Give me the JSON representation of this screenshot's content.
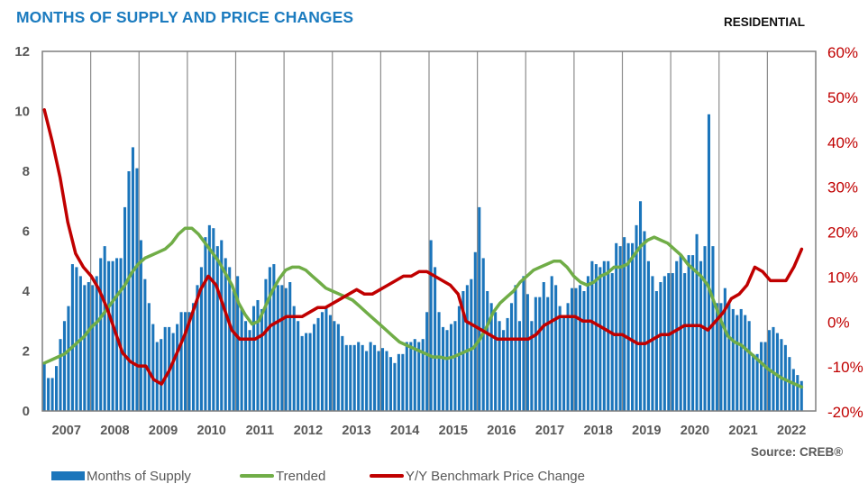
{
  "title": "MONTHS OF SUPPLY AND PRICE CHANGES",
  "segment_label": "RESIDENTIAL",
  "source": "Source: CREB®",
  "colors": {
    "title": "#1b7bbf",
    "bars": "#1b75bb",
    "trended": "#70ad47",
    "price_change": "#c00000",
    "gridlines": "#8c8c8c",
    "axis_text_left": "#595959",
    "axis_text_right": "#c00000"
  },
  "legend": [
    {
      "label": "Months of Supply",
      "type": "bar",
      "color": "#1b75bb"
    },
    {
      "label": "Trended",
      "type": "line",
      "color": "#70ad47"
    },
    {
      "label": "Y/Y Benchmark Price Change",
      "type": "line",
      "color": "#c00000"
    }
  ],
  "chart_data": {
    "type": "bar+line",
    "title": "MONTHS OF SUPPLY AND PRICE CHANGES",
    "subtitle": "RESIDENTIAL",
    "xlabel": "",
    "ylabel_left": "Months of Supply",
    "ylabel_right": "Y/Y Benchmark Price Change",
    "ylim_left": [
      0,
      12
    ],
    "ylim_right": [
      -20,
      60
    ],
    "yticks_left": [
      "0",
      "2",
      "4",
      "6",
      "8",
      "10",
      "12"
    ],
    "yticks_right": [
      "-20%",
      "-10%",
      "0%",
      "10%",
      "20%",
      "30%",
      "40%",
      "50%",
      "60%"
    ],
    "x_categories": [
      "2007",
      "2008",
      "2009",
      "2010",
      "2011",
      "2012",
      "2013",
      "2014",
      "2015",
      "2016",
      "2017",
      "2018",
      "2019",
      "2020",
      "2021",
      "2022"
    ],
    "x_frequency": "monthly",
    "x_start": "2007-01",
    "x_end": "2022-02",
    "grid": "vertical lines at year boundaries",
    "legend_position": "bottom",
    "series": [
      {
        "name": "Months of Supply",
        "type": "bar",
        "axis": "left",
        "values": [
          1.6,
          1.1,
          1.1,
          1.5,
          2.4,
          3.0,
          3.5,
          4.9,
          4.8,
          4.5,
          4.2,
          4.3,
          4.2,
          4.5,
          5.1,
          5.5,
          5.0,
          5.0,
          5.1,
          5.1,
          6.8,
          8.0,
          8.8,
          8.1,
          5.7,
          4.4,
          3.6,
          2.9,
          2.3,
          2.4,
          2.8,
          2.8,
          2.6,
          2.9,
          3.3,
          3.3,
          3.3,
          3.6,
          4.2,
          4.8,
          5.8,
          6.2,
          6.1,
          5.5,
          5.7,
          5.1,
          4.8,
          4.0,
          4.5,
          3.4,
          3.0,
          2.7,
          3.5,
          3.7,
          3.4,
          4.4,
          4.8,
          4.9,
          4.2,
          4.2,
          4.1,
          4.3,
          3.5,
          3.0,
          2.5,
          2.6,
          2.6,
          2.9,
          3.1,
          3.3,
          3.5,
          3.2,
          3.0,
          2.9,
          2.5,
          2.2,
          2.2,
          2.2,
          2.3,
          2.2,
          2.0,
          2.3,
          2.2,
          2.0,
          2.1,
          2.0,
          1.8,
          1.6,
          1.9,
          1.9,
          2.3,
          2.3,
          2.4,
          2.3,
          2.4,
          3.3,
          5.7,
          4.8,
          3.3,
          2.8,
          2.7,
          2.9,
          3.0,
          3.5,
          4.0,
          4.2,
          4.4,
          5.3,
          6.8,
          5.1,
          4.0,
          3.6,
          3.3,
          3.0,
          2.7,
          3.1,
          3.6,
          4.2,
          3.0,
          4.5,
          3.9,
          3.0,
          3.8,
          3.8,
          4.3,
          3.8,
          4.5,
          4.2,
          3.5,
          3.2,
          3.6,
          4.1,
          4.1,
          4.2,
          4.0,
          4.5,
          5.0,
          4.9,
          4.8,
          5.0,
          5.0,
          4.6,
          5.6,
          5.5,
          5.8,
          5.6,
          5.6,
          6.2,
          7.0,
          6.0,
          5.0,
          4.5,
          4.0,
          4.3,
          4.5,
          4.6,
          4.6,
          5.0,
          5.2,
          4.6,
          5.2,
          5.2,
          5.9,
          5.0,
          5.5,
          9.9,
          5.5,
          3.6,
          3.6,
          4.1,
          3.6,
          3.4,
          3.2,
          3.4,
          3.2,
          3.0,
          1.9,
          1.9,
          2.3,
          2.3,
          2.7,
          2.8,
          2.6,
          2.4,
          2.2,
          1.8,
          1.4,
          1.2,
          1.0
        ]
      },
      {
        "name": "Trended",
        "type": "line",
        "axis": "left",
        "values": [
          1.6,
          1.7,
          1.8,
          1.9,
          2.1,
          2.3,
          2.5,
          2.8,
          3.0,
          3.3,
          3.6,
          3.9,
          4.2,
          4.6,
          4.9,
          5.1,
          5.2,
          5.3,
          5.4,
          5.6,
          5.9,
          6.1,
          6.1,
          5.9,
          5.6,
          5.3,
          5.0,
          4.6,
          4.2,
          3.6,
          3.2,
          2.9,
          3.0,
          3.5,
          4.0,
          4.4,
          4.7,
          4.8,
          4.8,
          4.7,
          4.5,
          4.3,
          4.1,
          4.0,
          3.9,
          3.8,
          3.7,
          3.5,
          3.3,
          3.1,
          2.9,
          2.7,
          2.5,
          2.3,
          2.2,
          2.1,
          2.0,
          1.9,
          1.8,
          1.8,
          1.75,
          1.8,
          1.9,
          2.0,
          2.1,
          2.4,
          2.8,
          3.3,
          3.6,
          3.8,
          4.0,
          4.3,
          4.5,
          4.7,
          4.8,
          4.9,
          5.0,
          5.0,
          4.8,
          4.5,
          4.3,
          4.2,
          4.3,
          4.5,
          4.6,
          4.8,
          4.8,
          4.9,
          5.2,
          5.5,
          5.7,
          5.8,
          5.7,
          5.6,
          5.4,
          5.2,
          4.9,
          4.7,
          4.5,
          4.2,
          3.6,
          3.0,
          2.5,
          2.3,
          2.2,
          2.0,
          1.8,
          1.6,
          1.4,
          1.25,
          1.1,
          1.0,
          0.9,
          0.8
        ]
      },
      {
        "name": "Y/Y Benchmark Price Change",
        "type": "line",
        "axis": "right",
        "unit": "%",
        "values": [
          47,
          40,
          32,
          22,
          15,
          12,
          10,
          7,
          3,
          -2,
          -7,
          -9,
          -10,
          -10,
          -13,
          -14,
          -11,
          -7,
          -3,
          2,
          7,
          10,
          8,
          3,
          -2,
          -4,
          -4,
          -4,
          -3,
          -1,
          0,
          1,
          1,
          1,
          2,
          3,
          3,
          4,
          5,
          6,
          7,
          6,
          6,
          7,
          8,
          9,
          10,
          10,
          11,
          11,
          10,
          9,
          8,
          6,
          0,
          -1,
          -2,
          -3,
          -4,
          -4,
          -4,
          -4,
          -4,
          -3,
          -1,
          0,
          1,
          1,
          1,
          0,
          0,
          -1,
          -2,
          -3,
          -3,
          -4,
          -5,
          -5,
          -4,
          -3,
          -3,
          -2,
          -1,
          -1,
          -1,
          -2,
          0,
          2,
          5,
          6,
          8,
          12,
          11,
          9,
          9,
          9,
          12,
          16
        ]
      }
    ],
    "notes": "Bars and Trended use left axis (months); Y/Y Benchmark Price Change uses right axis (%). Trended and price-change values listed at reduced resolution (spanning same time range)."
  }
}
